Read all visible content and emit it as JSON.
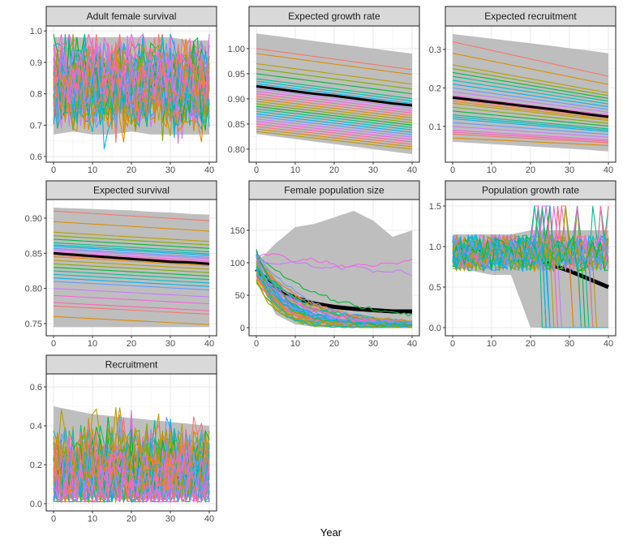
{
  "chart_data": {
    "type": "line",
    "xlabel": "Year",
    "palette": [
      "#F8766D",
      "#DE8C00",
      "#B79F00",
      "#7CAE00",
      "#00BA38",
      "#00C08B",
      "#00BFC4",
      "#00B4F0",
      "#619CFF",
      "#C77CFF",
      "#F564E3",
      "#FF64B0"
    ],
    "ribbon_color": "#bebebe",
    "mean_color": "#000000",
    "grid": true,
    "x_range": [
      0,
      40
    ],
    "xticks": [
      "0",
      "10",
      "20",
      "30",
      "40"
    ],
    "summary_years": [
      0,
      5,
      10,
      15,
      20,
      25,
      30,
      35,
      40
    ],
    "panels": [
      {
        "title": "Adult female survival",
        "kind": "noisy",
        "ylim": [
          0.582,
          1.016
        ],
        "yticks": [
          "0.6",
          "0.7",
          "0.8",
          "0.9",
          "1.0"
        ],
        "ytick_values": [
          0.6,
          0.7,
          0.8,
          0.9,
          1.0
        ],
        "ribbon_lower": [
          0.67,
          0.68,
          0.67,
          0.67,
          0.68,
          0.67,
          0.67,
          0.67,
          0.67
        ],
        "ribbon_upper": [
          0.98,
          0.98,
          0.98,
          0.98,
          0.98,
          0.98,
          0.98,
          0.97,
          0.97
        ],
        "mean": [
          0.83,
          0.83,
          0.83,
          0.83,
          0.83,
          0.83,
          0.83,
          0.83,
          0.83
        ],
        "noise_range": [
          0.61,
          0.99
        ]
      },
      {
        "title": "Expected growth rate",
        "kind": "linear",
        "ylim": [
          0.774,
          1.045
        ],
        "yticks": [
          "0.80",
          "0.85",
          "0.90",
          "0.95",
          "1.00"
        ],
        "ytick_values": [
          0.8,
          0.85,
          0.9,
          0.95,
          1.0
        ],
        "ribbon_lower": [
          0.83,
          0.825,
          0.82,
          0.815,
          0.81,
          0.805,
          0.8,
          0.795,
          0.79
        ],
        "ribbon_upper": [
          1.03,
          1.025,
          1.02,
          1.015,
          1.01,
          1.005,
          1.0,
          0.995,
          0.99
        ],
        "mean": [
          0.925,
          0.92,
          0.915,
          0.91,
          0.906,
          0.901,
          0.896,
          0.891,
          0.887
        ],
        "line_starts": [
          1.0,
          0.99,
          0.97,
          0.96,
          0.95,
          0.94,
          0.935,
          0.93,
          0.925,
          0.92,
          0.915,
          0.91,
          0.905,
          0.9,
          0.895,
          0.89,
          0.885,
          0.88,
          0.875,
          0.87,
          0.865,
          0.86,
          0.855,
          0.85,
          0.845,
          0.84,
          0.835
        ],
        "end_ratio": 0.958
      },
      {
        "title": "Expected recruitment",
        "kind": "linear",
        "ylim": [
          0.007,
          0.361
        ],
        "yticks": [
          "0.1",
          "0.2",
          "0.3"
        ],
        "ytick_values": [
          0.1,
          0.2,
          0.3
        ],
        "ribbon_lower": [
          0.06,
          0.057,
          0.054,
          0.051,
          0.048,
          0.045,
          0.042,
          0.039,
          0.035
        ],
        "ribbon_upper": [
          0.34,
          0.334,
          0.328,
          0.322,
          0.316,
          0.31,
          0.303,
          0.297,
          0.29
        ],
        "mean": [
          0.175,
          0.169,
          0.163,
          0.157,
          0.151,
          0.145,
          0.138,
          0.131,
          0.125
        ],
        "line_starts": [
          0.32,
          0.29,
          0.26,
          0.25,
          0.24,
          0.23,
          0.22,
          0.21,
          0.2,
          0.19,
          0.18,
          0.175,
          0.17,
          0.165,
          0.16,
          0.15,
          0.14,
          0.13,
          0.125,
          0.12,
          0.11,
          0.1,
          0.09,
          0.085,
          0.08,
          0.07
        ],
        "end_ratio": 0.72
      },
      {
        "title": "Expected survival",
        "kind": "linear",
        "ylim": [
          0.7327,
          0.9265
        ],
        "yticks": [
          "0.75",
          "0.80",
          "0.85",
          "0.90"
        ],
        "ytick_values": [
          0.75,
          0.8,
          0.85,
          0.9
        ],
        "ribbon_lower": [
          0.745,
          0.745,
          0.745,
          0.745,
          0.745,
          0.745,
          0.745,
          0.745,
          0.745
        ],
        "ribbon_upper": [
          0.915,
          0.914,
          0.913,
          0.912,
          0.911,
          0.909,
          0.908,
          0.906,
          0.905
        ],
        "mean": [
          0.85,
          0.848,
          0.846,
          0.844,
          0.842,
          0.84,
          0.838,
          0.837,
          0.835
        ],
        "line_starts": [
          0.91,
          0.895,
          0.88,
          0.875,
          0.87,
          0.865,
          0.862,
          0.86,
          0.857,
          0.855,
          0.852,
          0.85,
          0.847,
          0.845,
          0.84,
          0.835,
          0.83,
          0.825,
          0.82,
          0.815,
          0.81,
          0.8,
          0.79,
          0.78,
          0.775,
          0.76
        ],
        "end_ratio": 0.985
      },
      {
        "title": "Female population size",
        "kind": "decay",
        "ylim": [
          -12.5,
          197.5
        ],
        "yticks": [
          "0",
          "50",
          "100",
          "150"
        ],
        "ytick_values": [
          0,
          50,
          100,
          150
        ],
        "ribbon_lower": [
          80,
          20,
          5,
          1,
          0,
          0,
          0,
          0,
          0
        ],
        "ribbon_upper": [
          100,
          130,
          155,
          160,
          170,
          180,
          165,
          140,
          150
        ],
        "mean": [
          90,
          60,
          46,
          37,
          32,
          29,
          27,
          25,
          25
        ],
        "start_range": [
          72,
          120
        ]
      },
      {
        "title": "Population growth rate",
        "kind": "growth",
        "ylim": [
          -0.1,
          1.58
        ],
        "yticks": [
          "0.0",
          "0.5",
          "1.0",
          "1.5"
        ],
        "ytick_values": [
          0,
          0.5,
          1.0,
          1.5
        ],
        "ribbon_lower": [
          0.75,
          0.7,
          0.65,
          0.65,
          0.0,
          0.0,
          0.0,
          0.0,
          0.0
        ],
        "ribbon_upper": [
          1.15,
          1.15,
          1.15,
          1.15,
          1.2,
          1.2,
          1.2,
          1.2,
          1.2
        ],
        "mean": [
          0.97,
          0.96,
          0.95,
          0.93,
          0.9,
          0.78,
          0.7,
          0.6,
          0.5
        ],
        "noise_range": [
          0.0,
          1.5
        ]
      },
      {
        "title": "Recruitment",
        "kind": "noisy",
        "ylim": [
          -0.0375,
          0.667
        ],
        "yticks": [
          "0.0",
          "0.2",
          "0.4",
          "0.6"
        ],
        "ytick_values": [
          0,
          0.2,
          0.4,
          0.6
        ],
        "ribbon_lower": [
          0.03,
          0.03,
          0.03,
          0.03,
          0.03,
          0.03,
          0.03,
          0.03,
          0.03
        ],
        "ribbon_upper": [
          0.5,
          0.48,
          0.46,
          0.45,
          0.44,
          0.43,
          0.42,
          0.41,
          0.4
        ],
        "mean": [
          0.16,
          0.16,
          0.155,
          0.15,
          0.15,
          0.145,
          0.14,
          0.14,
          0.14
        ],
        "noise_range": [
          0.01,
          0.63
        ]
      }
    ]
  }
}
